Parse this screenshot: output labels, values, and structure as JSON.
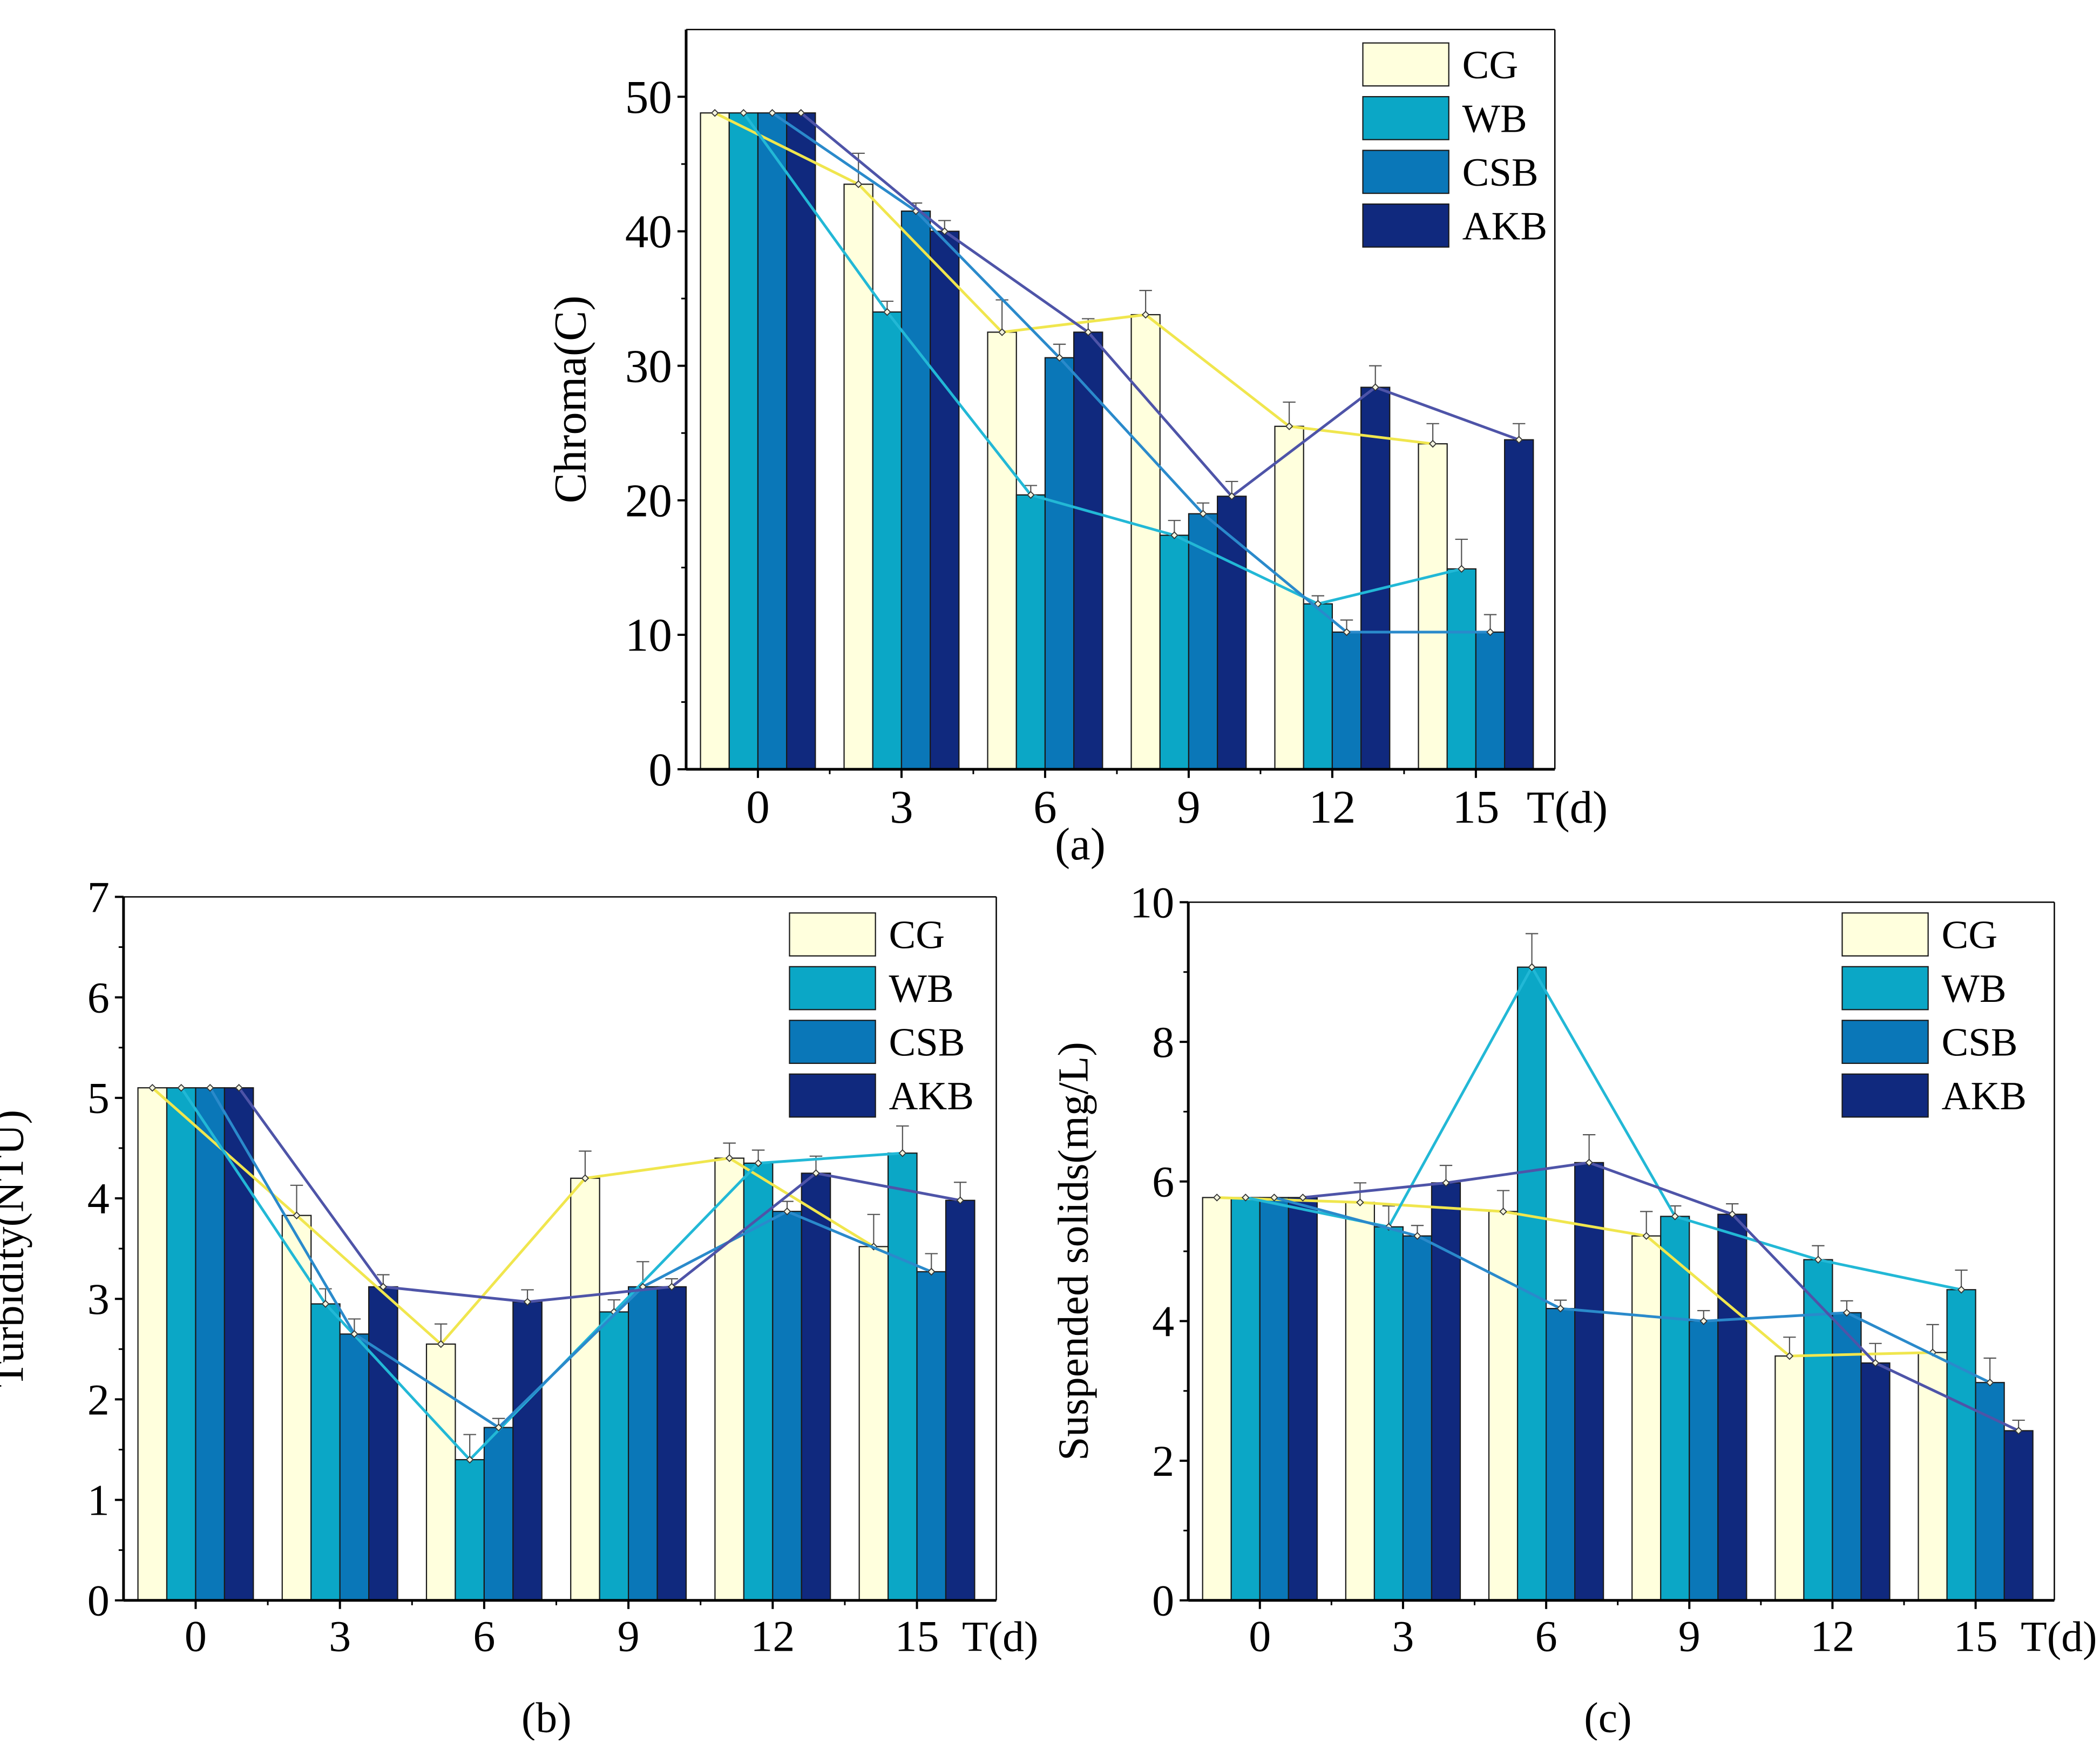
{
  "chart_data": [
    {
      "id": "a",
      "type": "bar",
      "panel_label": "(a)",
      "title": "",
      "xlabel": "T(d)",
      "ylabel": "Chroma(C)",
      "categories": [
        "0",
        "3",
        "6",
        "9",
        "12",
        "15"
      ],
      "ylim": [
        0,
        55
      ],
      "yticks": [
        0,
        10,
        20,
        30,
        40,
        50
      ],
      "legend_position": "top-right",
      "overlay_lines": true,
      "series": [
        {
          "name": "CG",
          "color": "#FFFFDD",
          "line_color": "#F0E64E",
          "values": [
            48.8,
            43.5,
            32.5,
            33.8,
            25.5,
            24.2
          ],
          "errors": [
            0.0,
            2.3,
            2.4,
            1.8,
            1.8,
            1.5
          ]
        },
        {
          "name": "WB",
          "color": "#0BA7C6",
          "line_color": "#22B8D6",
          "values": [
            48.8,
            34.0,
            20.4,
            17.4,
            12.3,
            14.9
          ],
          "errors": [
            0.0,
            0.8,
            0.7,
            1.1,
            0.6,
            2.2
          ]
        },
        {
          "name": "CSB",
          "color": "#0A77B8",
          "line_color": "#2A8ACB",
          "values": [
            48.8,
            41.5,
            30.6,
            19.0,
            10.2,
            10.2
          ],
          "errors": [
            0.0,
            0.6,
            1.0,
            0.8,
            0.9,
            1.3
          ]
        },
        {
          "name": "AKB",
          "color": "#10297E",
          "line_color": "#4E54A8",
          "values": [
            48.8,
            40.0,
            32.5,
            20.3,
            28.4,
            24.5
          ],
          "errors": [
            0.0,
            0.8,
            1.0,
            1.1,
            1.6,
            1.2
          ]
        }
      ]
    },
    {
      "id": "b",
      "type": "bar",
      "panel_label": "(b)",
      "title": "",
      "xlabel": "T(d)",
      "ylabel": "Turbidity(NTU)",
      "categories": [
        "0",
        "3",
        "6",
        "9",
        "12",
        "15"
      ],
      "ylim": [
        0,
        7
      ],
      "yticks": [
        0,
        1,
        2,
        3,
        4,
        5,
        6,
        7
      ],
      "legend_position": "top-right",
      "overlay_lines": true,
      "series": [
        {
          "name": "CG",
          "color": "#FFFFDD",
          "line_color": "#F0E64E",
          "values": [
            5.1,
            3.83,
            2.55,
            4.2,
            4.4,
            3.52
          ],
          "errors": [
            0.0,
            0.3,
            0.2,
            0.27,
            0.15,
            0.32
          ]
        },
        {
          "name": "WB",
          "color": "#0BA7C6",
          "line_color": "#22B8D6",
          "values": [
            5.1,
            2.95,
            1.4,
            2.87,
            4.35,
            4.45
          ],
          "errors": [
            0.0,
            0.15,
            0.25,
            0.12,
            0.13,
            0.27
          ]
        },
        {
          "name": "CSB",
          "color": "#0A77B8",
          "line_color": "#2A8ACB",
          "values": [
            5.1,
            2.65,
            1.72,
            3.12,
            3.87,
            3.27
          ],
          "errors": [
            0.0,
            0.15,
            0.09,
            0.25,
            0.1,
            0.18
          ]
        },
        {
          "name": "AKB",
          "color": "#10297E",
          "line_color": "#4E54A8",
          "values": [
            5.1,
            3.12,
            2.97,
            3.12,
            4.25,
            3.98
          ],
          "errors": [
            0.0,
            0.12,
            0.12,
            0.08,
            0.17,
            0.18
          ]
        }
      ]
    },
    {
      "id": "c",
      "type": "bar",
      "panel_label": "(c)",
      "title": "",
      "xlabel": "T(d)",
      "ylabel": "Suspended solids(mg/L)",
      "categories": [
        "0",
        "3",
        "6",
        "9",
        "12",
        "15"
      ],
      "ylim": [
        0,
        10
      ],
      "yticks": [
        0,
        2,
        4,
        6,
        8,
        10
      ],
      "legend_position": "top-right",
      "overlay_lines": true,
      "series": [
        {
          "name": "CG",
          "color": "#FFFFDD",
          "line_color": "#F0E64E",
          "values": [
            5.77,
            5.7,
            5.57,
            5.22,
            3.5,
            3.55
          ],
          "errors": [
            0.0,
            0.28,
            0.3,
            0.35,
            0.27,
            0.4
          ]
        },
        {
          "name": "WB",
          "color": "#0BA7C6",
          "line_color": "#22B8D6",
          "values": [
            5.77,
            5.35,
            9.07,
            5.5,
            4.88,
            4.45
          ],
          "errors": [
            0.0,
            0.3,
            0.48,
            0.15,
            0.2,
            0.28
          ]
        },
        {
          "name": "CSB",
          "color": "#0A77B8",
          "line_color": "#2A8ACB",
          "values": [
            5.77,
            5.22,
            4.18,
            4.0,
            4.12,
            3.12
          ],
          "errors": [
            0.0,
            0.15,
            0.12,
            0.15,
            0.17,
            0.35
          ]
        },
        {
          "name": "AKB",
          "color": "#10297E",
          "line_color": "#4E54A8",
          "values": [
            5.77,
            5.98,
            6.27,
            5.53,
            3.4,
            2.43
          ],
          "errors": [
            0.0,
            0.25,
            0.4,
            0.15,
            0.28,
            0.15
          ]
        }
      ]
    }
  ]
}
